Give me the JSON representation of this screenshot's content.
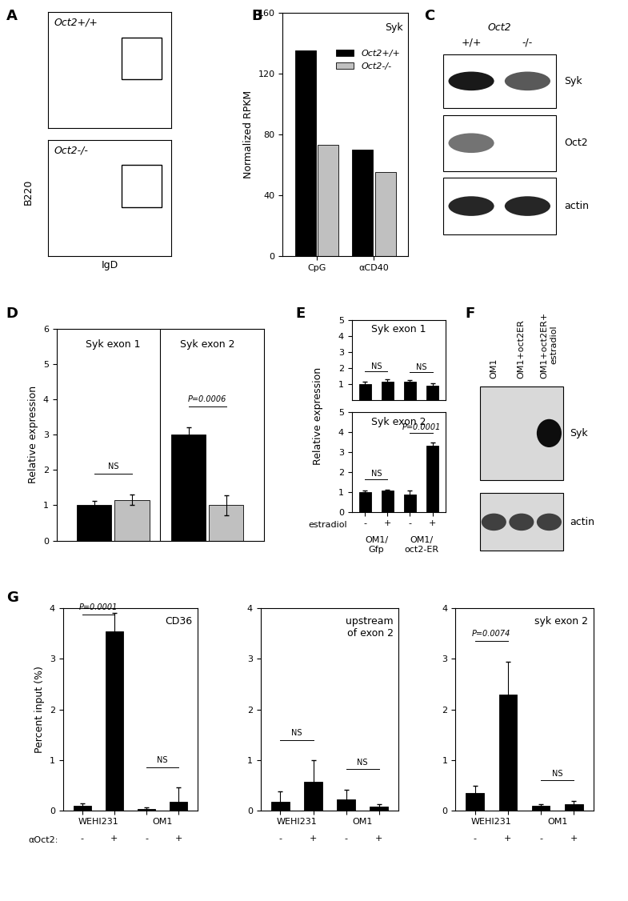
{
  "panel_letters": [
    "A",
    "B",
    "C",
    "D",
    "E",
    "F",
    "G"
  ],
  "flow_cytometry": {
    "xlabel": "IgD",
    "ylabel": "B220",
    "plots": [
      {
        "label": "Oct2+/+"
      },
      {
        "label": "Oct2-/-"
      }
    ]
  },
  "western_blot": {
    "header": "Oct2",
    "lanes": [
      "+/+",
      "-/-"
    ],
    "rows": [
      "Syk",
      "Oct2",
      "actin"
    ]
  },
  "northern_blot": {
    "lanes": [
      "OM1",
      "OM1+oct2ER",
      "OM1+oct2ER+\nestradiol"
    ],
    "rows": [
      "Syk",
      "actin"
    ]
  },
  "chart_data": [
    {
      "type": "bar",
      "title": "Syk",
      "ylabel": "Normalized RPKM",
      "categories": [
        "CpG",
        "αCD40"
      ],
      "series": [
        {
          "name": "Oct2+/+",
          "color": "#000000",
          "values": [
            135,
            70
          ]
        },
        {
          "name": "Oct2-/-",
          "color": "#c0c0c0",
          "values": [
            73,
            55
          ]
        }
      ],
      "ylim": [
        0,
        160
      ],
      "yticks": [
        0,
        40,
        80,
        120,
        160
      ],
      "legend": "upper right"
    },
    {
      "type": "bar",
      "ylabel": "Relative expression",
      "categories": [
        null,
        null
      ],
      "group_titles": [
        "Syk exon 1",
        "Syk exon 2"
      ],
      "series": [
        {
          "color": "#000000",
          "values": [
            1.0,
            3.0
          ],
          "errors": [
            0.12,
            0.2
          ]
        },
        {
          "color": "#c0c0c0",
          "values": [
            1.15,
            1.0
          ],
          "errors": [
            0.15,
            0.28
          ]
        }
      ],
      "significance": [
        "NS",
        "P=0.0006"
      ],
      "ylim": [
        0,
        6
      ],
      "yticks": [
        0,
        1,
        2,
        3,
        4,
        5,
        6
      ],
      "tick_labels": "y"
    },
    {
      "type": "bar",
      "title": "Syk exon 1",
      "categories": [
        null,
        null,
        null,
        null
      ],
      "series": [
        {
          "color": "#000000",
          "values": [
            1.0,
            1.12,
            1.12,
            0.88
          ],
          "errors": [
            0.15,
            0.15,
            0.1,
            0.15
          ]
        }
      ],
      "significance": [
        "NS",
        "NS"
      ],
      "ylim": [
        0,
        5
      ],
      "yticks": [
        1,
        2,
        3,
        4,
        5
      ],
      "tick_labels": "y"
    },
    {
      "type": "bar",
      "title": "Syk exon 2",
      "ylabel": "Relative expression",
      "xlabel": "estradiol",
      "categories": [
        "-",
        "+",
        "-",
        "+"
      ],
      "groups": [
        "OM1/\nGfp",
        "OM1/\noct2-ER"
      ],
      "series": [
        {
          "color": "#000000",
          "values": [
            1.0,
            1.05,
            0.85,
            3.3
          ],
          "errors": [
            0.05,
            0.07,
            0.2,
            0.15
          ]
        }
      ],
      "significance": [
        "NS",
        "P=0.0001"
      ],
      "ylim": [
        0,
        5
      ],
      "yticks": [
        0,
        1,
        2,
        3,
        4,
        5
      ]
    },
    {
      "type": "bar",
      "title": "CD36",
      "ylabel": "Percent input (%)",
      "xlabel": "αOct2:",
      "categories": [
        "-",
        "+",
        "-",
        "+"
      ],
      "groups": [
        "WEHI231",
        "OM1"
      ],
      "series": [
        {
          "color": "#000000",
          "values": [
            0.1,
            3.55,
            0.03,
            0.18
          ],
          "errors": [
            0.05,
            0.35,
            0.04,
            0.28
          ]
        }
      ],
      "significance": [
        "P=0.0001",
        "NS"
      ],
      "ylim": [
        0,
        4
      ],
      "yticks": [
        0,
        1,
        2,
        3,
        4
      ]
    },
    {
      "type": "bar",
      "title": "upstream\nof exon 2",
      "categories": [
        "-",
        "+",
        "-",
        "+"
      ],
      "groups": [
        "WEHI231",
        "OM1"
      ],
      "series": [
        {
          "color": "#000000",
          "values": [
            0.18,
            0.58,
            0.22,
            0.08
          ],
          "errors": [
            0.2,
            0.42,
            0.2,
            0.05
          ]
        }
      ],
      "significance": [
        "NS",
        "NS"
      ],
      "ylim": [
        0,
        4
      ],
      "yticks": [
        0,
        1,
        2,
        3,
        4
      ]
    },
    {
      "type": "bar",
      "title": "syk exon 2",
      "categories": [
        "-",
        "+",
        "-",
        "+"
      ],
      "groups": [
        "WEHI231",
        "OM1"
      ],
      "series": [
        {
          "color": "#000000",
          "values": [
            0.35,
            2.3,
            0.1,
            0.13
          ],
          "errors": [
            0.15,
            0.65,
            0.03,
            0.07
          ]
        }
      ],
      "significance": [
        "P=0.0074",
        "NS"
      ],
      "ylim": [
        0,
        4
      ],
      "yticks": [
        0,
        1,
        2,
        3,
        4
      ]
    }
  ]
}
